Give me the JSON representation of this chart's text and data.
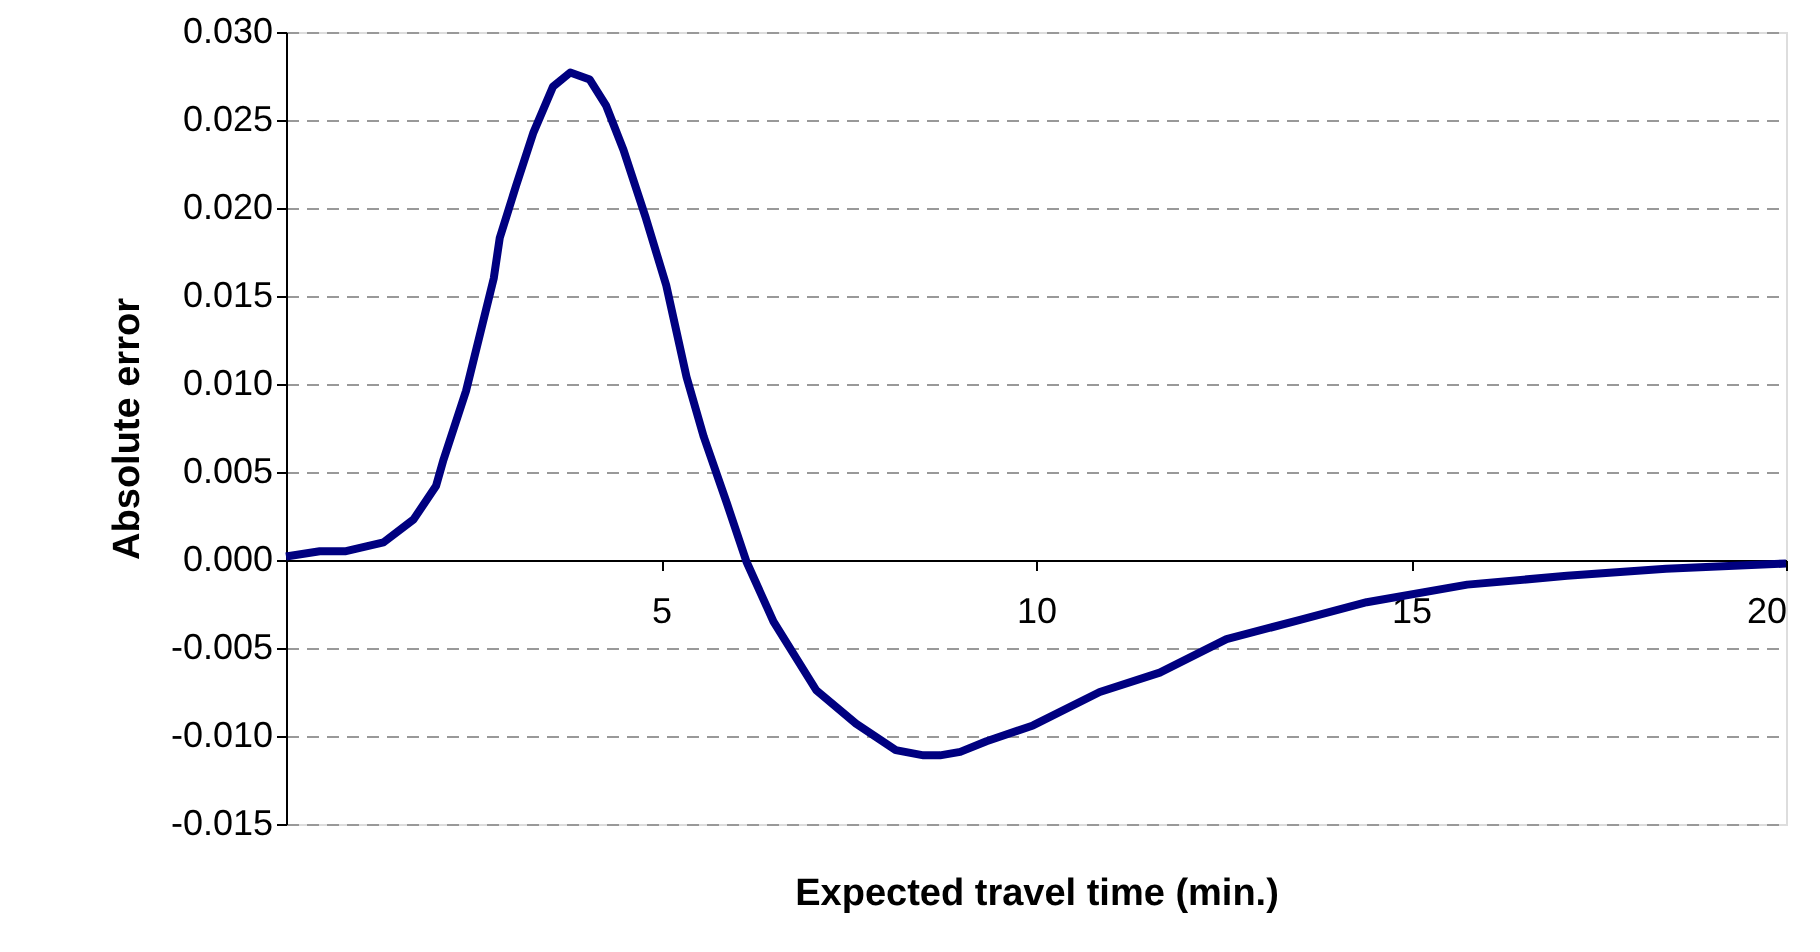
{
  "chart_data": {
    "type": "line",
    "xlabel": "Expected travel time (min.)",
    "ylabel": "Absolute error",
    "x": [
      0,
      0.45,
      0.8,
      1.3,
      1.7,
      2.0,
      2.1,
      2.4,
      2.77,
      2.85,
      3.07,
      3.3,
      3.56,
      3.79,
      4.05,
      4.27,
      4.5,
      4.8,
      5.07,
      5.34,
      5.57,
      5.88,
      6.14,
      6.5,
      7.07,
      7.6,
      8.13,
      8.5,
      8.72,
      8.99,
      9.34,
      9.96,
      10.85,
      11.65,
      12.54,
      13.52,
      14.41,
      15.75,
      17.08,
      18.4,
      20
    ],
    "series": [
      {
        "color": "#000080",
        "values": [
          0.0002,
          0.0005,
          0.0005,
          0.001,
          0.0023,
          0.0042,
          0.0057,
          0.0096,
          0.016,
          0.0183,
          0.0213,
          0.0243,
          0.0269,
          0.0277,
          0.0273,
          0.0258,
          0.0233,
          0.0194,
          0.0156,
          0.0104,
          0.007,
          0.0032,
          -0.0001,
          -0.0035,
          -0.0074,
          -0.0093,
          -0.0108,
          -0.0111,
          -0.0111,
          -0.0109,
          -0.0103,
          -0.0094,
          -0.0075,
          -0.0064,
          -0.0045,
          -0.0034,
          -0.0024,
          -0.0014,
          -0.0009,
          -0.0005,
          -0.0002
        ]
      }
    ],
    "xlim": [
      0,
      20
    ],
    "xticks": [
      5,
      10,
      15,
      20
    ],
    "ylim": [
      -0.015,
      0.03
    ],
    "yticks": [
      {
        "value": -0.015,
        "label": "-0.015"
      },
      {
        "value": -0.01,
        "label": "-0.010"
      },
      {
        "value": -0.005,
        "label": "-0.005"
      },
      {
        "value": 0,
        "label": "0.000"
      },
      {
        "value": 0.005,
        "label": "0.005"
      },
      {
        "value": 0.01,
        "label": "0.010"
      },
      {
        "value": 0.015,
        "label": "0.015"
      },
      {
        "value": 0.02,
        "label": "0.020"
      },
      {
        "value": 0.025,
        "label": "0.025"
      },
      {
        "value": 0.03,
        "label": "0.030"
      }
    ],
    "grid": "y",
    "marker": "none",
    "line_style": "solid"
  }
}
